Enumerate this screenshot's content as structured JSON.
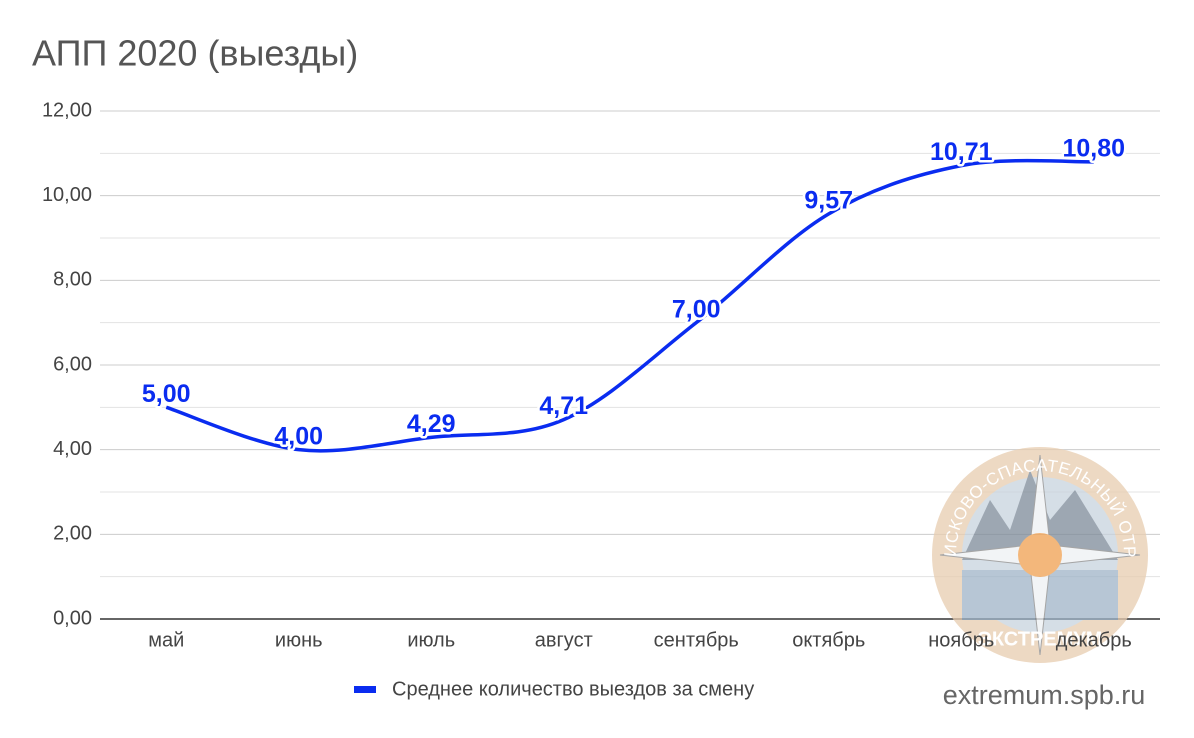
{
  "chart_data": {
    "type": "line",
    "title": "АПП 2020 (выезды)",
    "categories": [
      "май",
      "июнь",
      "июль",
      "август",
      "сентябрь",
      "октябрь",
      "ноябрь",
      "декабрь"
    ],
    "series": [
      {
        "name": "Среднее количество выездов за смену",
        "color": "#0a2cf0",
        "values": [
          5,
          4,
          4.29,
          4.71,
          7,
          9.57,
          10.71,
          10.8
        ],
        "value_labels": [
          "5,00",
          "4,00",
          "4,29",
          "4,71",
          "7,00",
          "9,57",
          "10,71",
          "10,80"
        ]
      }
    ],
    "ylim": [
      0,
      12
    ],
    "yticks": [
      {
        "value": 0,
        "label": "0,00"
      },
      {
        "value": 2,
        "label": "2,00"
      },
      {
        "value": 4,
        "label": "4,00"
      },
      {
        "value": 6,
        "label": "6,00"
      },
      {
        "value": 8,
        "label": "8,00"
      },
      {
        "value": 10,
        "label": "10,00"
      },
      {
        "value": 12,
        "label": "12,00"
      }
    ],
    "grid": true,
    "minor_grid": true,
    "smooth": true,
    "legend": "bottom"
  },
  "watermark": {
    "ring_text": "ПОИСКОВО-СПАСАТЕЛЬНЫЙ ОТРЯД",
    "name": "ЭКСТРЕМУМ",
    "url": "extremum.spb.ru"
  }
}
